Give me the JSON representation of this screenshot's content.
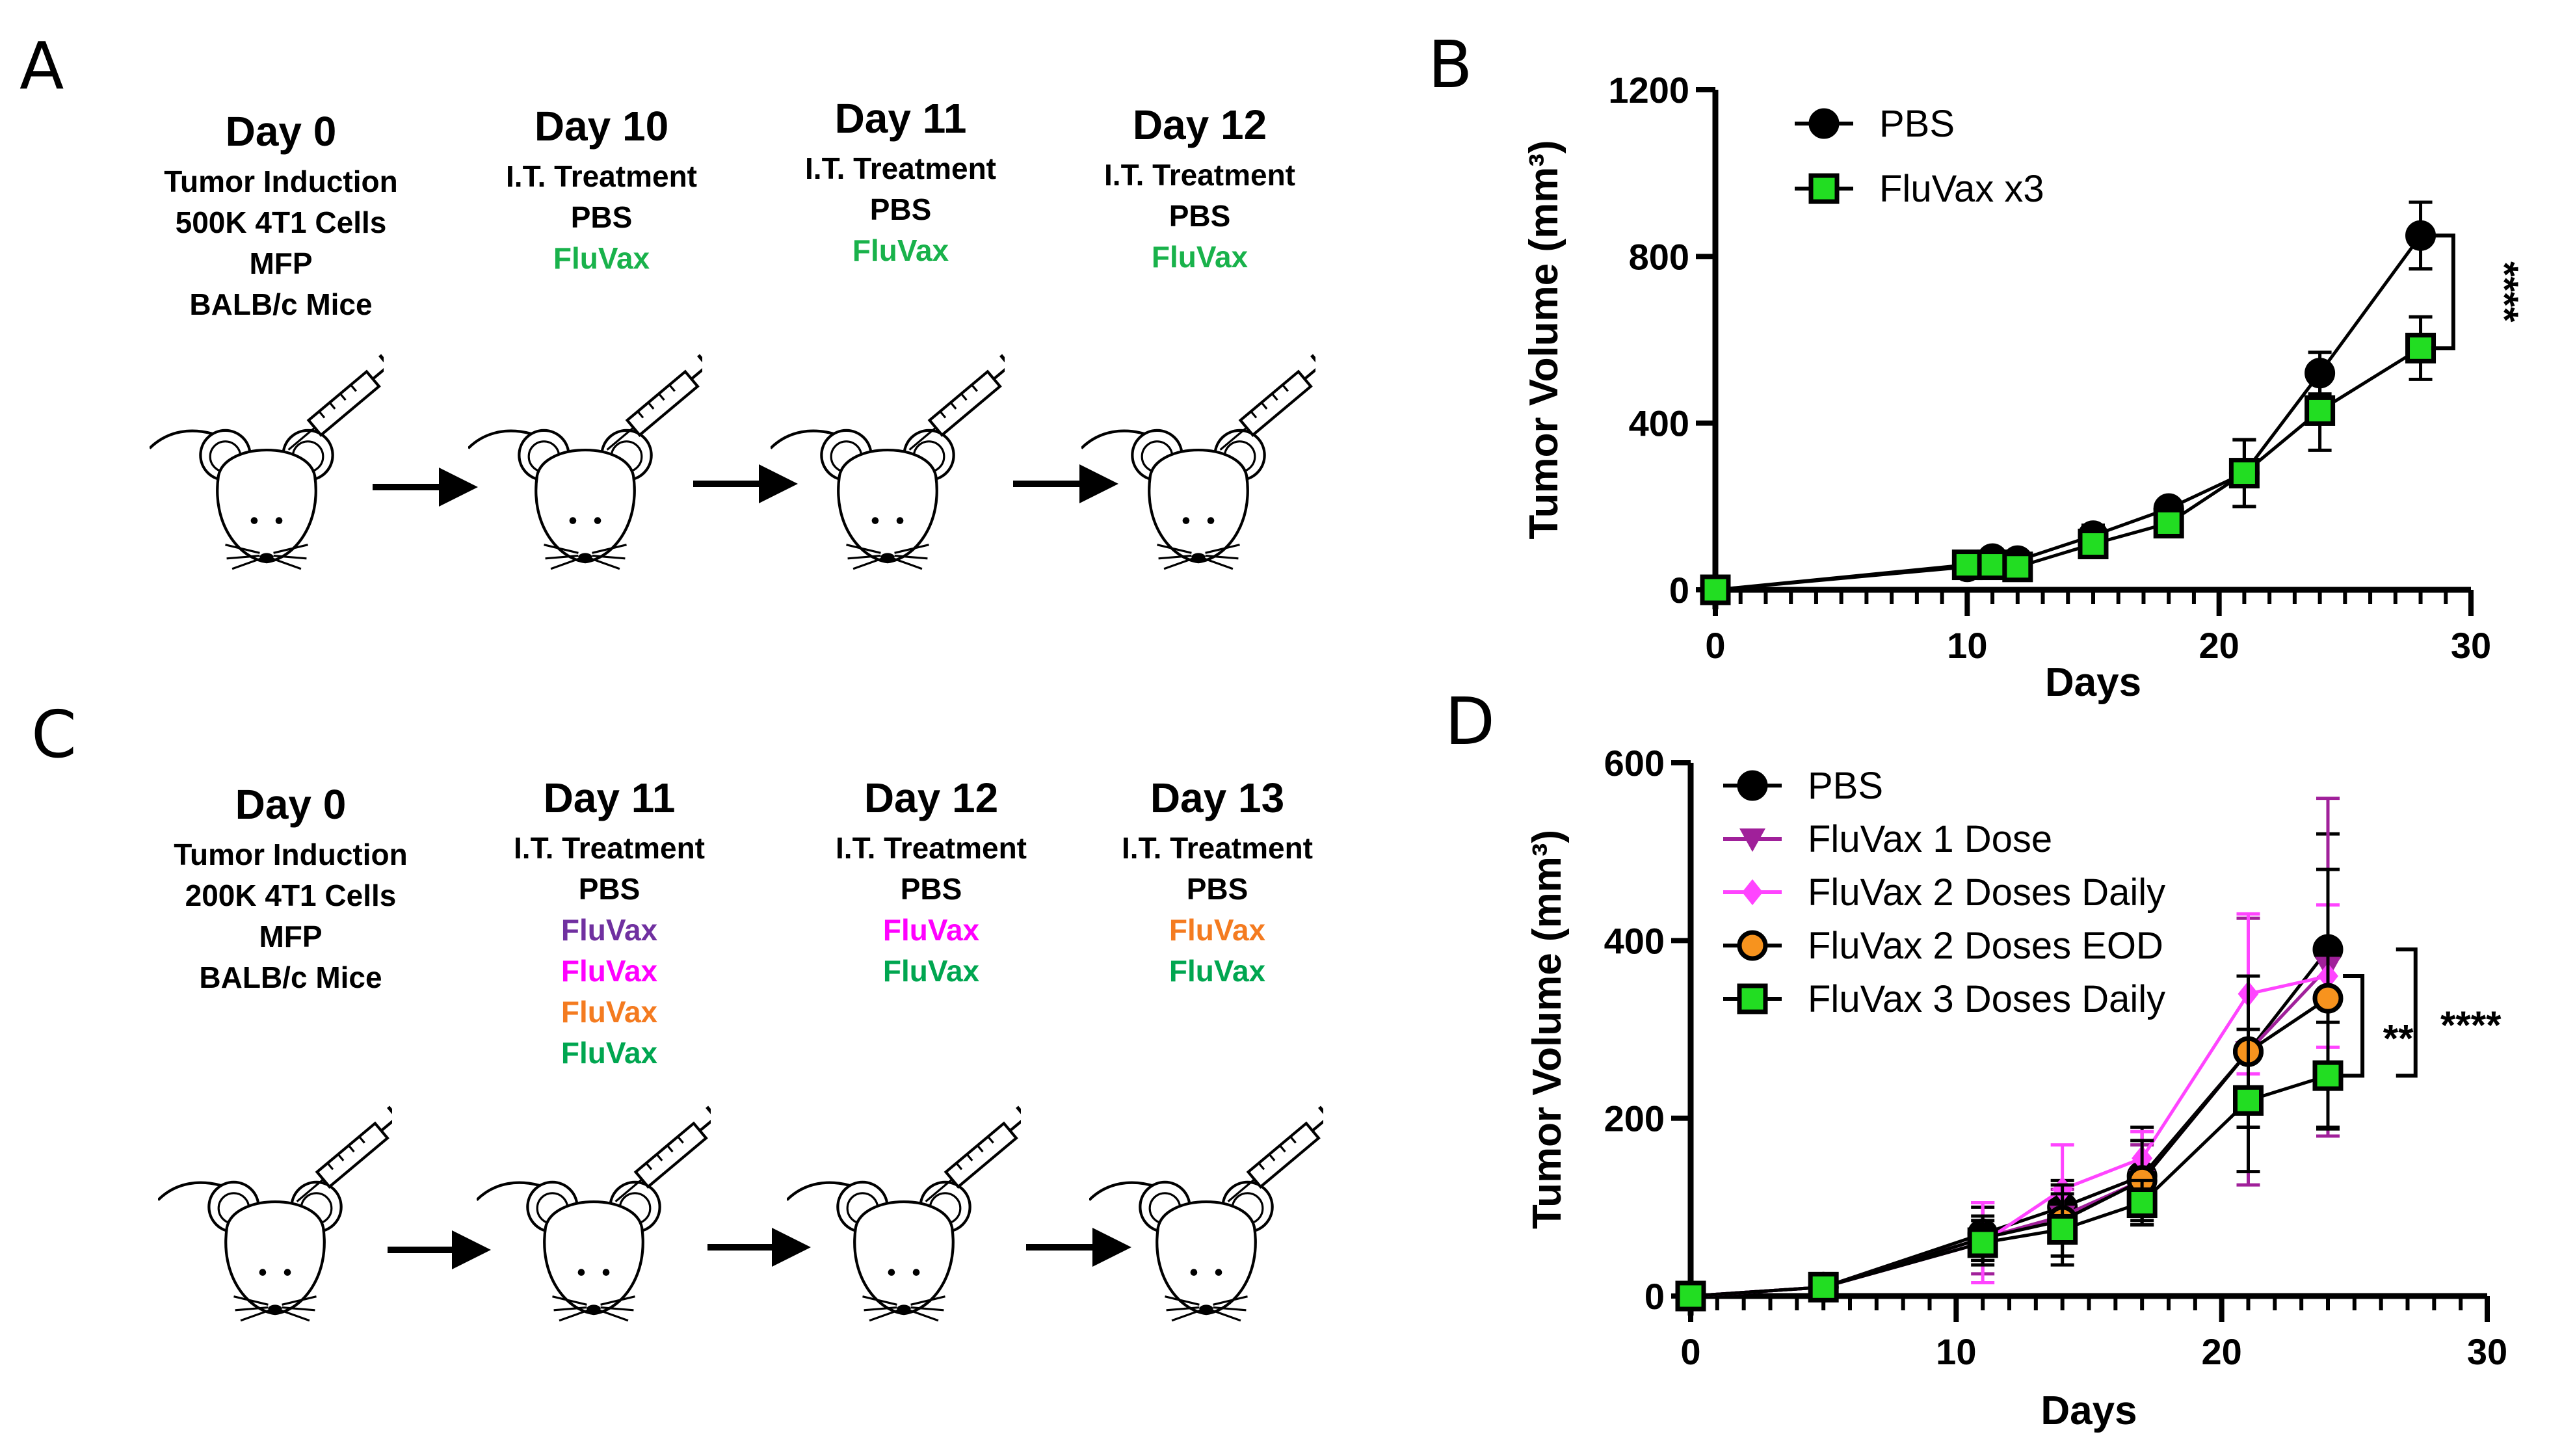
{
  "panels": {
    "A": {
      "letter": "A",
      "columns": [
        {
          "title": "Day 0",
          "lines": [
            {
              "text": "Tumor Induction",
              "color": "#000000"
            },
            {
              "text": "500K 4T1 Cells",
              "color": "#000000"
            },
            {
              "text": "MFP",
              "color": "#000000"
            },
            {
              "text": "BALB/c Mice",
              "color": "#000000"
            }
          ]
        },
        {
          "title": "Day 10",
          "lines": [
            {
              "text": "I.T. Treatment",
              "color": "#000000"
            },
            {
              "text": "PBS",
              "color": "#000000"
            },
            {
              "text": "FluVax",
              "color": "#19b24b"
            }
          ]
        },
        {
          "title": "Day 11",
          "lines": [
            {
              "text": "I.T. Treatment",
              "color": "#000000"
            },
            {
              "text": "PBS",
              "color": "#000000"
            },
            {
              "text": "FluVax",
              "color": "#19b24b"
            }
          ]
        },
        {
          "title": "Day 12",
          "lines": [
            {
              "text": "I.T. Treatment",
              "color": "#000000"
            },
            {
              "text": "PBS",
              "color": "#000000"
            },
            {
              "text": "FluVax",
              "color": "#19b24b"
            }
          ]
        }
      ]
    },
    "C": {
      "letter": "C",
      "columns": [
        {
          "title": "Day 0",
          "lines": [
            {
              "text": "Tumor Induction",
              "color": "#000000"
            },
            {
              "text": "200K 4T1 Cells",
              "color": "#000000"
            },
            {
              "text": "MFP",
              "color": "#000000"
            },
            {
              "text": "BALB/c Mice",
              "color": "#000000"
            }
          ]
        },
        {
          "title": "Day 11",
          "lines": [
            {
              "text": "I.T. Treatment",
              "color": "#000000"
            },
            {
              "text": "PBS",
              "color": "#000000"
            },
            {
              "text": "FluVax",
              "color": "#7030a0"
            },
            {
              "text": "FluVax",
              "color": "#ff00ff"
            },
            {
              "text": "FluVax",
              "color": "#f47b20"
            },
            {
              "text": "FluVax",
              "color": "#00a650"
            }
          ]
        },
        {
          "title": "Day 12",
          "lines": [
            {
              "text": "I.T. Treatment",
              "color": "#000000"
            },
            {
              "text": "PBS",
              "color": "#000000"
            },
            {
              "text": "FluVax",
              "color": "#ff00ff"
            },
            {
              "text": "FluVax",
              "color": "#00a650"
            }
          ]
        },
        {
          "title": "Day 13",
          "lines": [
            {
              "text": "I.T. Treatment",
              "color": "#000000"
            },
            {
              "text": "PBS",
              "color": "#000000"
            },
            {
              "text": "FluVax",
              "color": "#f47b20"
            },
            {
              "text": "FluVax",
              "color": "#00a650"
            }
          ]
        }
      ]
    },
    "B": {
      "letter": "B"
    },
    "D": {
      "letter": "D"
    }
  },
  "chart_data": [
    {
      "panel": "B",
      "type": "line",
      "xlabel": "Days",
      "ylabel": "Tumor Volume (mm³)",
      "xlim": [
        0,
        30
      ],
      "ylim": [
        0,
        1200
      ],
      "xticks": [
        "0",
        "10",
        "20",
        "30"
      ],
      "yticks": [
        "0",
        "400",
        "800",
        "1200"
      ],
      "legend_position": "top-left",
      "series": [
        {
          "name": "PBS",
          "marker": "circle",
          "fill": "#000000",
          "line": "#000000",
          "x": [
            0,
            10,
            11,
            12,
            15,
            18,
            21,
            24,
            28
          ],
          "y": [
            0,
            55,
            75,
            70,
            130,
            195,
            280,
            520,
            850
          ],
          "err": [
            0,
            10,
            10,
            10,
            25,
            10,
            80,
            50,
            80
          ]
        },
        {
          "name": "FluVax x3",
          "marker": "square",
          "fill": "#22dd22",
          "line": "#000000",
          "x": [
            0,
            10,
            11,
            12,
            15,
            18,
            21,
            24,
            28
          ],
          "y": [
            0,
            60,
            60,
            55,
            110,
            160,
            280,
            430,
            580
          ],
          "err": [
            0,
            10,
            10,
            10,
            25,
            15,
            80,
            95,
            75
          ]
        }
      ],
      "annotations": [
        {
          "text": "****",
          "from": 850,
          "to": 580,
          "x": 29.3
        }
      ]
    },
    {
      "panel": "D",
      "type": "line",
      "xlabel": "Days",
      "ylabel": "Tumor Volume (mm³)",
      "xlim": [
        0,
        30
      ],
      "ylim": [
        0,
        600
      ],
      "xticks": [
        "0",
        "10",
        "20",
        "30"
      ],
      "yticks": [
        "0",
        "200",
        "400",
        "600"
      ],
      "legend_position": "top-left",
      "series": [
        {
          "name": "PBS",
          "marker": "circle",
          "fill": "#000000",
          "line": "#000000",
          "x": [
            0,
            5,
            11,
            14,
            17,
            21,
            24
          ],
          "y": [
            0,
            10,
            70,
            100,
            135,
            275,
            390
          ],
          "err": [
            0,
            3,
            30,
            30,
            55,
            85,
            130
          ]
        },
        {
          "name": "FluVax 1 Dose",
          "marker": "triangle-down",
          "fill": "#a0209a",
          "line": "#a0209a",
          "x": [
            0,
            5,
            11,
            14,
            17,
            21,
            24
          ],
          "y": [
            0,
            10,
            65,
            90,
            130,
            275,
            370
          ],
          "err": [
            0,
            3,
            40,
            30,
            40,
            150,
            190
          ]
        },
        {
          "name": "FluVax 2 Doses Daily",
          "marker": "diamond",
          "fill": "#ff44ff",
          "line": "#ff44ff",
          "x": [
            0,
            5,
            11,
            14,
            17,
            21,
            24
          ],
          "y": [
            0,
            10,
            60,
            120,
            155,
            340,
            360
          ],
          "err": [
            0,
            3,
            45,
            50,
            30,
            90,
            80
          ]
        },
        {
          "name": "FluVax 2 Doses EOD",
          "marker": "circle",
          "fill": "#f7931e",
          "line": "#000000",
          "x": [
            0,
            5,
            11,
            14,
            17,
            21,
            24
          ],
          "y": [
            0,
            10,
            65,
            85,
            130,
            275,
            335
          ],
          "err": [
            0,
            3,
            25,
            40,
            45,
            85,
            145
          ]
        },
        {
          "name": "FluVax 3 Doses Daily",
          "marker": "square",
          "fill": "#22dd22",
          "line": "#000000",
          "x": [
            0,
            5,
            11,
            14,
            17,
            21,
            24
          ],
          "y": [
            0,
            10,
            60,
            75,
            105,
            220,
            248
          ],
          "err": [
            0,
            3,
            25,
            40,
            25,
            80,
            60
          ]
        }
      ],
      "annotations": [
        {
          "text": "**",
          "from": 360,
          "to": 248,
          "x": 25.3
        },
        {
          "text": "****",
          "from": 390,
          "to": 248,
          "x": 27.3
        }
      ]
    }
  ]
}
